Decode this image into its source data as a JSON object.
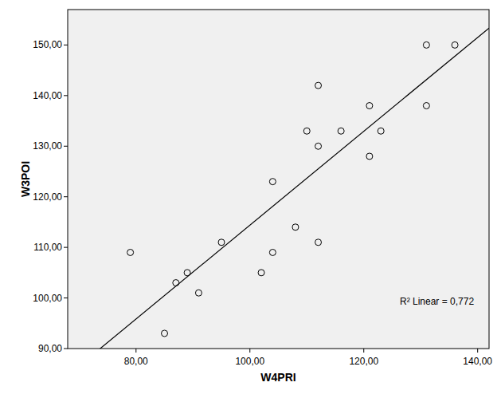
{
  "chart_data": {
    "type": "scatter",
    "x_label": "W4PRI",
    "y_label": "W3POI",
    "annotation": "R² Linear = 0,772",
    "x": [
      79,
      85,
      87,
      89,
      91,
      95,
      102,
      104,
      104,
      108,
      110,
      112,
      112,
      112,
      116,
      121,
      121,
      123,
      131,
      131,
      136
    ],
    "values": [
      109,
      93,
      103,
      105,
      101,
      111,
      105,
      123,
      109,
      114,
      133,
      130,
      142,
      111,
      133,
      138,
      128,
      133,
      150,
      138,
      150
    ],
    "color": "#000000",
    "marker": "open-circle",
    "xlim": [
      68,
      142
    ],
    "ylim": [
      90,
      157
    ],
    "xticks": [
      {
        "value": 80,
        "label": "80,00"
      },
      {
        "value": 100,
        "label": "100,00"
      },
      {
        "value": 120,
        "label": "120,00"
      },
      {
        "value": 140,
        "label": "140,00"
      }
    ],
    "yticks": [
      {
        "value": 90,
        "label": "90,00"
      },
      {
        "value": 100,
        "label": "100,00"
      },
      {
        "value": 110,
        "label": "110,00"
      },
      {
        "value": 120,
        "label": "120,00"
      },
      {
        "value": 130,
        "label": "130,00"
      },
      {
        "value": 140,
        "label": "140,00"
      },
      {
        "value": 150,
        "label": "150,00"
      }
    ],
    "grid": false
  }
}
